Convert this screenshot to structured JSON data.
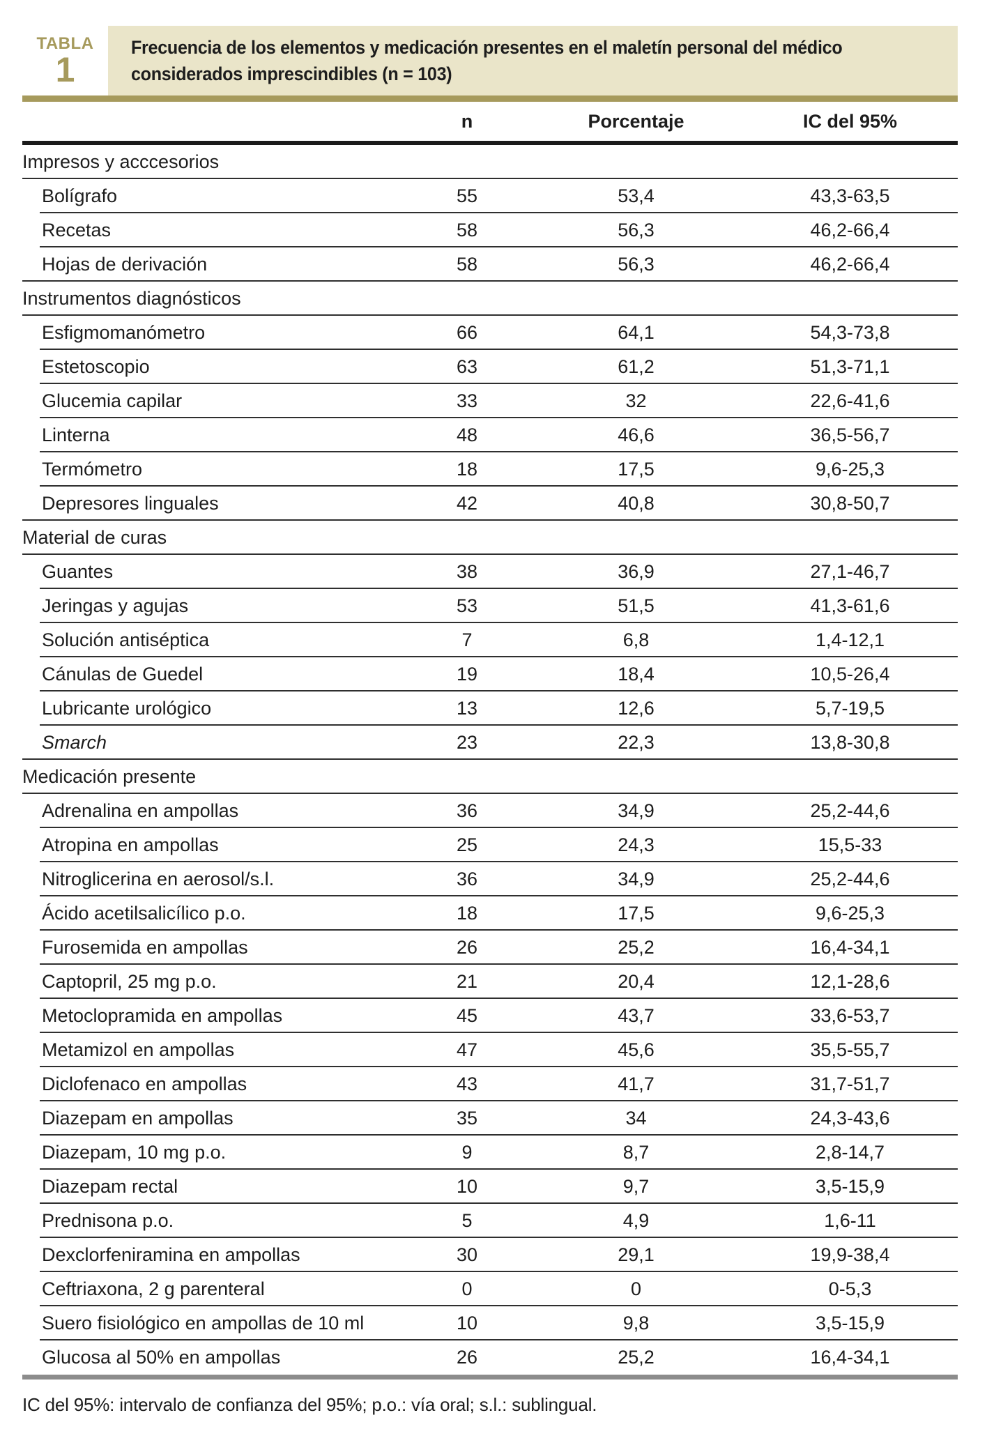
{
  "label": {
    "word": "TABLA",
    "number": "1"
  },
  "title": {
    "line1": "Frecuencia de los elementos y medicación presentes en el maletín personal del médico",
    "line2": "considerados imprescindibles (n = 103)"
  },
  "columns": [
    "n",
    "Porcentaje",
    "IC del 95%"
  ],
  "sections": [
    {
      "header": "Impresos y acccesorios",
      "rows": [
        {
          "label": "Bolígrafo",
          "n": "55",
          "pct": "53,4",
          "ic": "43,3-63,5"
        },
        {
          "label": "Recetas",
          "n": "58",
          "pct": "56,3",
          "ic": "46,2-66,4"
        },
        {
          "label": "Hojas de derivación",
          "n": "58",
          "pct": "56,3",
          "ic": "46,2-66,4"
        }
      ]
    },
    {
      "header": "Instrumentos diagnósticos",
      "rows": [
        {
          "label": "Esfigmomanómetro",
          "n": "66",
          "pct": "64,1",
          "ic": "54,3-73,8"
        },
        {
          "label": "Estetoscopio",
          "n": "63",
          "pct": "61,2",
          "ic": "51,3-71,1"
        },
        {
          "label": "Glucemia capilar",
          "n": "33",
          "pct": "32",
          "ic": "22,6-41,6"
        },
        {
          "label": "Linterna",
          "n": "48",
          "pct": "46,6",
          "ic": "36,5-56,7"
        },
        {
          "label": "Termómetro",
          "n": "18",
          "pct": "17,5",
          "ic": "9,6-25,3"
        },
        {
          "label": "Depresores linguales",
          "n": "42",
          "pct": "40,8",
          "ic": "30,8-50,7"
        }
      ]
    },
    {
      "header": "Material de curas",
      "rows": [
        {
          "label": "Guantes",
          "n": "38",
          "pct": "36,9",
          "ic": "27,1-46,7"
        },
        {
          "label": "Jeringas y agujas",
          "n": "53",
          "pct": "51,5",
          "ic": "41,3-61,6"
        },
        {
          "label": "Solución antiséptica",
          "n": "7",
          "pct": "6,8",
          "ic": "1,4-12,1"
        },
        {
          "label": "Cánulas de Guedel",
          "n": "19",
          "pct": "18,4",
          "ic": "10,5-26,4"
        },
        {
          "label": "Lubricante urológico",
          "n": "13",
          "pct": "12,6",
          "ic": "5,7-19,5"
        },
        {
          "label": "Smarch",
          "n": "23",
          "pct": "22,3",
          "ic": "13,8-30,8",
          "italic": true
        }
      ]
    },
    {
      "header": "Medicación presente",
      "rows": [
        {
          "label": "Adrenalina en ampollas",
          "n": "36",
          "pct": "34,9",
          "ic": "25,2-44,6"
        },
        {
          "label": "Atropina en ampollas",
          "n": "25",
          "pct": "24,3",
          "ic": "15,5-33"
        },
        {
          "label": "Nitroglicerina en aerosol/s.l.",
          "n": "36",
          "pct": "34,9",
          "ic": "25,2-44,6"
        },
        {
          "label": "Ácido acetilsalicílico p.o.",
          "n": "18",
          "pct": "17,5",
          "ic": "9,6-25,3"
        },
        {
          "label": "Furosemida en ampollas",
          "n": "26",
          "pct": "25,2",
          "ic": "16,4-34,1"
        },
        {
          "label": "Captopril, 25 mg p.o.",
          "n": "21",
          "pct": "20,4",
          "ic": "12,1-28,6"
        },
        {
          "label": "Metoclopramida en ampollas",
          "n": "45",
          "pct": "43,7",
          "ic": "33,6-53,7"
        },
        {
          "label": "Metamizol en ampollas",
          "n": "47",
          "pct": "45,6",
          "ic": "35,5-55,7"
        },
        {
          "label": "Diclofenaco en ampollas",
          "n": "43",
          "pct": "41,7",
          "ic": "31,7-51,7"
        },
        {
          "label": "Diazepam en ampollas",
          "n": "35",
          "pct": "34",
          "ic": "24,3-43,6"
        },
        {
          "label": "Diazepam, 10 mg p.o.",
          "n": "9",
          "pct": "8,7",
          "ic": "2,8-14,7"
        },
        {
          "label": "Diazepam rectal",
          "n": "10",
          "pct": "9,7",
          "ic": "3,5-15,9"
        },
        {
          "label": "Prednisona p.o.",
          "n": "5",
          "pct": "4,9",
          "ic": "1,6-11"
        },
        {
          "label": "Dexclorfeniramina en ampollas",
          "n": "30",
          "pct": "29,1",
          "ic": "19,9-38,4"
        },
        {
          "label": "Ceftriaxona, 2 g parenteral",
          "n": "0",
          "pct": "0",
          "ic": "0-5,3"
        },
        {
          "label": "Suero fisiológico en ampollas de 10 ml",
          "n": "10",
          "pct": "9,8",
          "ic": "3,5-15,9"
        },
        {
          "label": "Glucosa al 50% en ampollas",
          "n": "26",
          "pct": "25,2",
          "ic": "16,4-34,1"
        }
      ]
    }
  ],
  "footnote": "IC del 95%: intervalo de confianza del 95%; p.o.: vía oral; s.l.: sublingual.",
  "colors": {
    "olive": "#a69a5c",
    "beige": "#eae5c9",
    "thick_rule": "#1a1a1a",
    "thin_line": "#2f2f2f",
    "gray_bar": "#8c8c8c",
    "text": "#1d1d1d"
  }
}
